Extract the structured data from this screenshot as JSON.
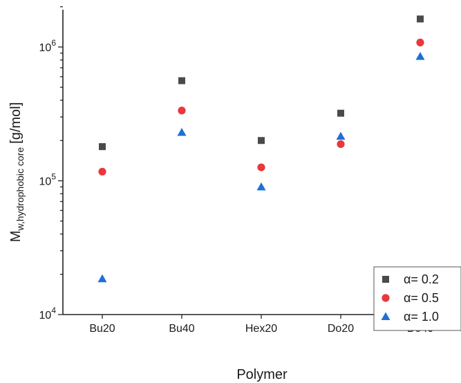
{
  "chart_data": {
    "type": "scatter",
    "title": "",
    "xlabel": "Polymer",
    "ylabel": {
      "main": "M",
      "subscript": "w,hydrophobic core",
      "unit": "[g/mol]"
    },
    "categories": [
      "Bu20",
      "Bu40",
      "Hex20",
      "Do20",
      "Do40"
    ],
    "y_scale": "log",
    "ylim": [
      10000,
      2000000
    ],
    "y_ticks": [
      {
        "value": 10000,
        "base": "10",
        "exp": "4"
      },
      {
        "value": 100000,
        "base": "10",
        "exp": "5"
      },
      {
        "value": 1000000,
        "base": "10",
        "exp": "6"
      }
    ],
    "grid": false,
    "legend_position": "bottom-right",
    "series": [
      {
        "name": "α= 0.2",
        "marker": "square",
        "color": "#4a4a4a",
        "values": [
          180000,
          560000,
          200000,
          320000,
          1620000
        ]
      },
      {
        "name": "α= 0.5",
        "marker": "circle",
        "color": "#e8383d",
        "values": [
          117000,
          335000,
          126000,
          188000,
          1080000
        ]
      },
      {
        "name": "α= 1.0",
        "marker": "triangle",
        "color": "#1f6fd6",
        "values": [
          18500,
          230000,
          90000,
          215000,
          850000
        ]
      }
    ]
  }
}
